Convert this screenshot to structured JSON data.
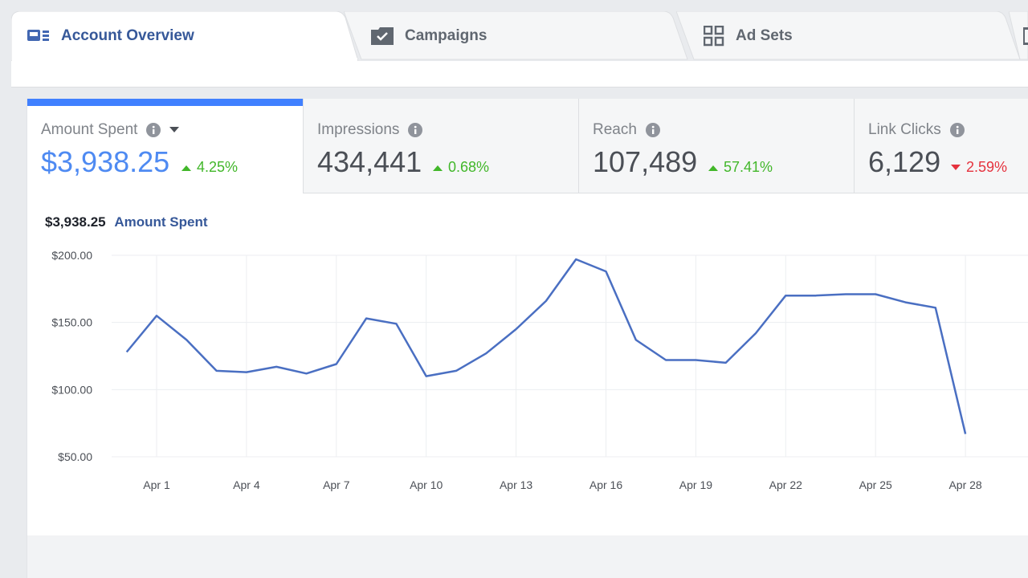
{
  "tabs": [
    {
      "label": "Account Overview",
      "icon": "dashboard-icon",
      "active": true
    },
    {
      "label": "Campaigns",
      "icon": "folder-check-icon",
      "active": false
    },
    {
      "label": "Ad Sets",
      "icon": "grid-icon",
      "active": false
    }
  ],
  "metrics": [
    {
      "label": "Amount Spent",
      "value": "$3,938.25",
      "change": "4.25%",
      "direction": "up",
      "has_dropdown": true
    },
    {
      "label": "Impressions",
      "value": "434,441",
      "change": "0.68%",
      "direction": "up"
    },
    {
      "label": "Reach",
      "value": "107,489",
      "change": "57.41%",
      "direction": "up"
    },
    {
      "label": "Link Clicks",
      "value": "6,129",
      "change": "2.59%",
      "direction": "down"
    }
  ],
  "chart_header": {
    "total": "$3,938.25",
    "metric": "Amount Spent"
  },
  "colors": {
    "accent": "#4080ff",
    "line": "#4a6fc2",
    "up": "#42b72a",
    "down": "#e5323e",
    "brand": "#365899"
  },
  "chart_data": {
    "type": "line",
    "x_start_tick": "Apr 1",
    "x_tick_labels": [
      "Apr 1",
      "Apr 4",
      "Apr 7",
      "Apr 10",
      "Apr 13",
      "Apr 16",
      "Apr 19",
      "Apr 22",
      "Apr 25",
      "Apr 28"
    ],
    "y_tick_labels": [
      "$200.00",
      "$150.00",
      "$100.00",
      "$50.00"
    ],
    "y_ticks": [
      200,
      150,
      100,
      50
    ],
    "ylim": [
      50,
      200
    ],
    "grid": true,
    "series": [
      {
        "name": "Amount Spent",
        "x": [
          "Mar 30",
          "Apr 1",
          "Apr 2",
          "Apr 3",
          "Apr 4",
          "Apr 5",
          "Apr 6",
          "Apr 7",
          "Apr 8",
          "Apr 9",
          "Apr 10",
          "Apr 11",
          "Apr 12",
          "Apr 13",
          "Apr 14",
          "Apr 15",
          "Apr 16",
          "Apr 17",
          "Apr 18",
          "Apr 19",
          "Apr 20",
          "Apr 21",
          "Apr 22",
          "Apr 23",
          "Apr 24",
          "Apr 25",
          "Apr 26",
          "Apr 27",
          "Apr 28"
        ],
        "values": [
          128,
          155,
          137,
          114,
          113,
          117,
          112,
          119,
          153,
          149,
          110,
          114,
          127,
          145,
          166,
          197,
          188,
          137,
          122,
          122,
          120,
          142,
          170,
          170,
          171,
          171,
          165,
          161,
          67
        ]
      }
    ]
  }
}
